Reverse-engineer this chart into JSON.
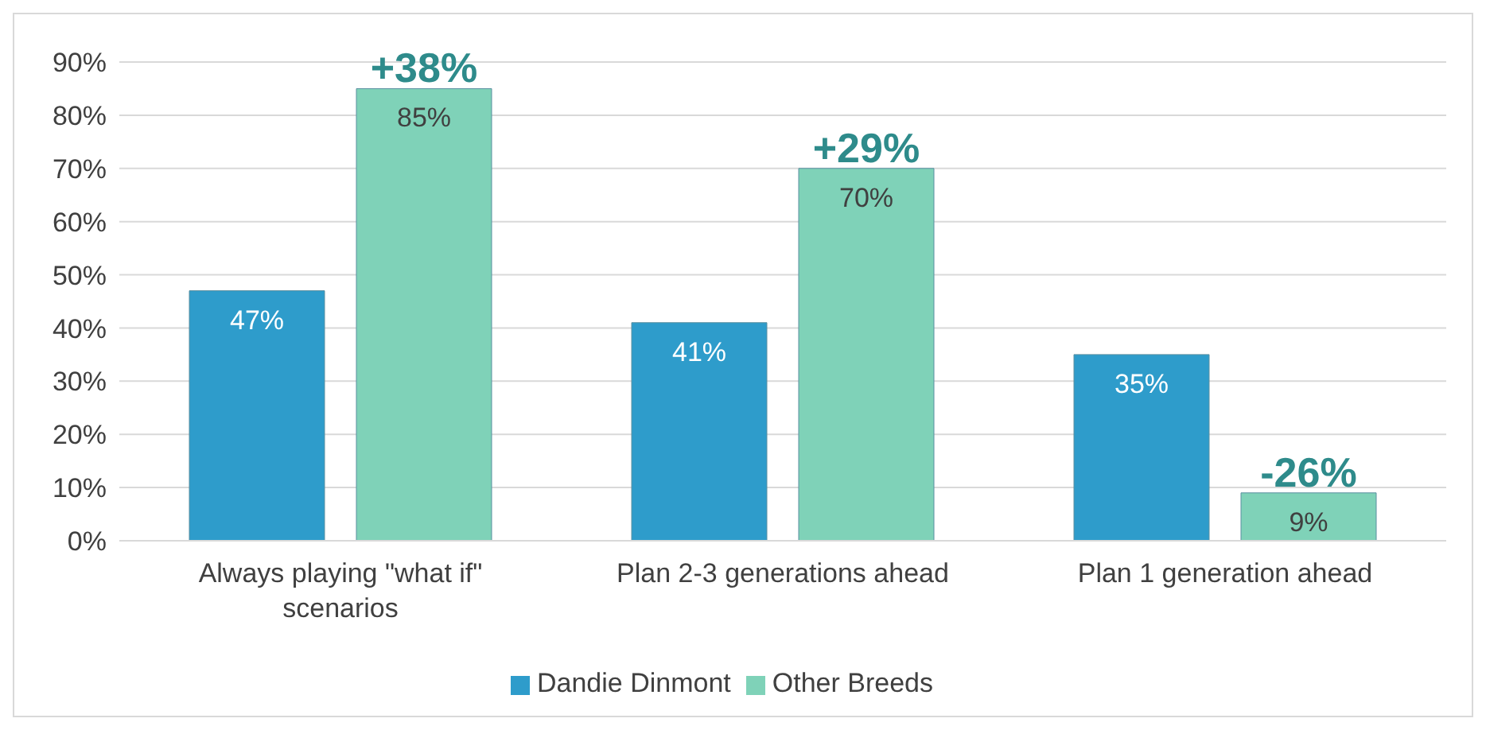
{
  "chart_data": {
    "type": "bar",
    "categories": [
      "Always playing \"what if\" scenarios",
      "Plan 2-3 generations ahead",
      "Plan 1 generation ahead"
    ],
    "series": [
      {
        "name": "Dandie Dinmont",
        "color": "#2e9ccb",
        "values": [
          47,
          41,
          35
        ],
        "value_labels": [
          "47%",
          "41%",
          "35%"
        ]
      },
      {
        "name": "Other Breeds",
        "color": "#7fd2b8",
        "values": [
          85,
          70,
          9
        ],
        "value_labels": [
          "85%",
          "70%",
          "9%"
        ]
      }
    ],
    "ylim": [
      0,
      90
    ],
    "yticks": [
      {
        "value": 0,
        "label": "0%"
      },
      {
        "value": 10,
        "label": "10%"
      },
      {
        "value": 20,
        "label": "20%"
      },
      {
        "value": 30,
        "label": "30%"
      },
      {
        "value": 40,
        "label": "40%"
      },
      {
        "value": 50,
        "label": "50%"
      },
      {
        "value": 60,
        "label": "60%"
      },
      {
        "value": 70,
        "label": "70%"
      },
      {
        "value": 80,
        "label": "80%"
      },
      {
        "value": 90,
        "label": "90%"
      }
    ],
    "grid": "y",
    "legend": "bottom",
    "annotations": [
      "+38%",
      "+29%",
      "-26%"
    ]
  }
}
